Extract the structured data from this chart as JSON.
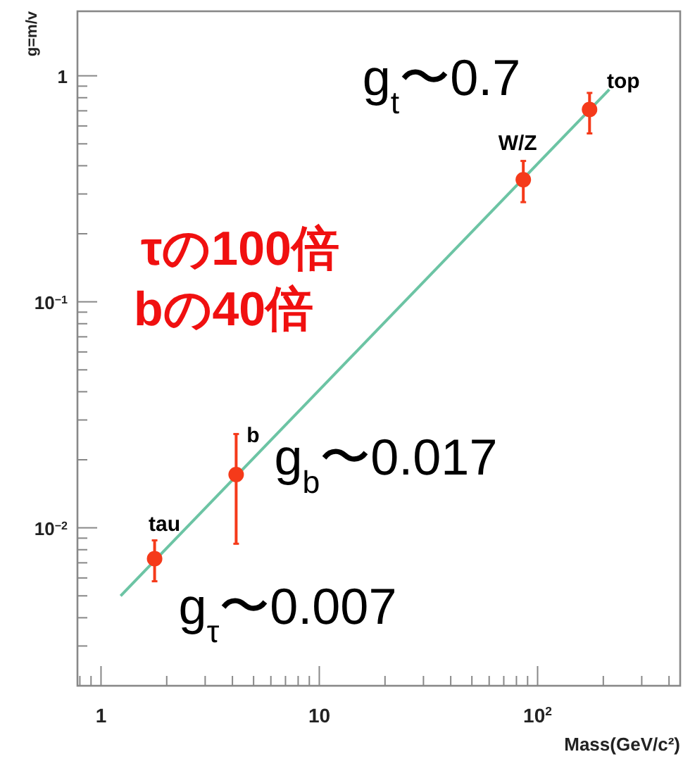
{
  "chart_data": {
    "type": "scatter",
    "log": "xy",
    "xlabel": "Mass(GeV/c²)",
    "ylabel": "g=m/v",
    "xlim": [
      0.78,
      450
    ],
    "ylim": [
      0.002,
      1.93
    ],
    "xticks": [
      1,
      10,
      {
        "value": 100,
        "label": "10$^{2}$"
      }
    ],
    "yticks": [
      {
        "value": 0.01,
        "label": "10$^{−2}$"
      },
      {
        "value": 0.1,
        "label": "10$^{−1}$"
      },
      1
    ],
    "grid": false,
    "marker": "circle",
    "series": [
      {
        "type": "line",
        "color": "#6cc4a4",
        "x": [
          1.23,
          213
        ],
        "values": [
          0.005,
          0.87
        ],
        "marker": "none"
      },
      {
        "color": "#f53a1a",
        "x": [
          1.76,
          4.16,
          86,
          173
        ],
        "values": [
          0.0073,
          0.0172,
          0.347,
          0.71
        ],
        "errors": [
          [
            0.0058,
            0.0088
          ],
          [
            0.0085,
            0.026
          ],
          [
            0.276,
            0.42
          ],
          [
            0.556,
            0.84
          ]
        ]
      }
    ],
    "annotations": [
      {
        "text": "tau",
        "x": 1.76,
        "y": 0.0073
      },
      {
        "text": "b",
        "x": 4.16,
        "y": 0.0172
      },
      {
        "text": "W/Z",
        "x": 86,
        "y": 0.347
      },
      {
        "text": "top",
        "x": 173,
        "y": 0.71
      },
      {
        "text": "g$_{t}$〜0.7",
        "x": 173,
        "y": 0.71
      },
      {
        "text": "g$_{b}$〜0.017",
        "x": 4.16,
        "y": 0.0172
      },
      {
        "text": "g$_{τ}$〜0.007",
        "x": 1.76,
        "y": 0.0073
      },
      "τの100倍",
      "bの40倍"
    ]
  }
}
